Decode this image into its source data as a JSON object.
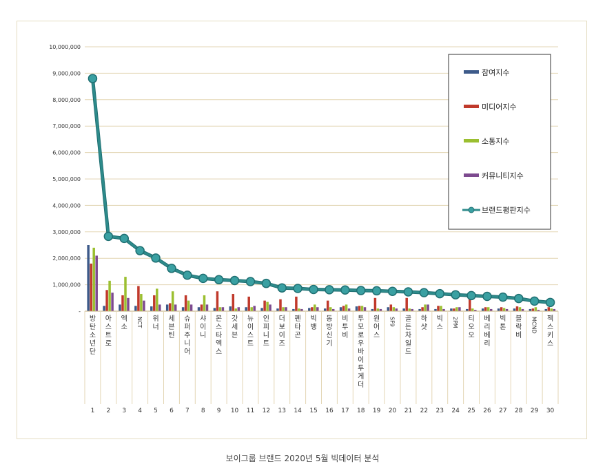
{
  "caption": "보이그룹 브랜드 2020년 5월 빅데이터 분석",
  "chart_data": {
    "type": "bar",
    "title": "",
    "xlabel": "",
    "ylabel": "",
    "ylim": [
      0,
      10000000
    ],
    "y_ticks": [
      "-",
      "1,000,000",
      "2,000,000",
      "3,000,000",
      "4,000,000",
      "5,000,000",
      "6,000,000",
      "7,000,000",
      "8,000,000",
      "9,000,000",
      "10,000,000"
    ],
    "grid": true,
    "legend_position": "top-right",
    "categories": [
      "방탄소년단",
      "아스트로",
      "엑소",
      "NCT",
      "위너",
      "세븐틴",
      "슈퍼주니어",
      "샤이니",
      "몬스타엑스",
      "갓세븐",
      "뉴이스트",
      "인피니트",
      "더보이즈",
      "펜타곤",
      "빅뱅",
      "동방신기",
      "비투비",
      "투모로우바이투게더",
      "원어스",
      "SF9",
      "골든차일드",
      "하샷",
      "빅스",
      "2PM",
      "티오오",
      "베리베리",
      "빅톤",
      "블락비",
      "MCND",
      "젝스키스"
    ],
    "ranks": [
      "1",
      "2",
      "3",
      "4",
      "5",
      "6",
      "7",
      "8",
      "9",
      "10",
      "11",
      "12",
      "13",
      "14",
      "15",
      "16",
      "17",
      "18",
      "19",
      "20",
      "21",
      "22",
      "23",
      "24",
      "25",
      "26",
      "27",
      "28",
      "29",
      "30"
    ],
    "series": [
      {
        "name": "참여지수",
        "kind": "bar",
        "color": "#3d5a8a",
        "values": [
          2500000,
          200000,
          250000,
          200000,
          180000,
          250000,
          150000,
          150000,
          120000,
          180000,
          150000,
          120000,
          100000,
          80000,
          120000,
          100000,
          150000,
          180000,
          80000,
          150000,
          100000,
          80000,
          80000,
          100000,
          80000,
          100000,
          100000,
          100000,
          80000,
          80000
        ]
      },
      {
        "name": "미디어지수",
        "kind": "bar",
        "color": "#c0392b",
        "values": [
          1800000,
          800000,
          600000,
          950000,
          600000,
          300000,
          600000,
          250000,
          750000,
          650000,
          550000,
          400000,
          450000,
          550000,
          150000,
          400000,
          200000,
          200000,
          500000,
          250000,
          500000,
          150000,
          200000,
          100000,
          450000,
          150000,
          150000,
          180000,
          100000,
          150000
        ]
      },
      {
        "name": "소통지수",
        "kind": "bar",
        "color": "#9bbf30",
        "values": [
          2400000,
          1150000,
          1300000,
          650000,
          850000,
          750000,
          400000,
          600000,
          150000,
          100000,
          150000,
          350000,
          150000,
          100000,
          250000,
          150000,
          250000,
          200000,
          100000,
          150000,
          100000,
          250000,
          200000,
          150000,
          100000,
          150000,
          120000,
          150000,
          150000,
          100000
        ]
      },
      {
        "name": "커뮤니티지수",
        "kind": "bar",
        "color": "#7d4a8f",
        "values": [
          2100000,
          700000,
          500000,
          400000,
          250000,
          250000,
          250000,
          250000,
          150000,
          150000,
          200000,
          250000,
          150000,
          80000,
          150000,
          80000,
          100000,
          150000,
          80000,
          100000,
          80000,
          250000,
          80000,
          150000,
          50000,
          80000,
          80000,
          80000,
          50000,
          80000
        ]
      },
      {
        "name": "브랜드평판지수",
        "kind": "line",
        "color": "#2e8b8b",
        "values": [
          8800000,
          2830000,
          2750000,
          2290000,
          2010000,
          1620000,
          1360000,
          1240000,
          1190000,
          1160000,
          1120000,
          1050000,
          880000,
          860000,
          820000,
          810000,
          800000,
          780000,
          770000,
          750000,
          730000,
          700000,
          660000,
          620000,
          590000,
          560000,
          530000,
          480000,
          380000,
          330000
        ]
      }
    ]
  }
}
